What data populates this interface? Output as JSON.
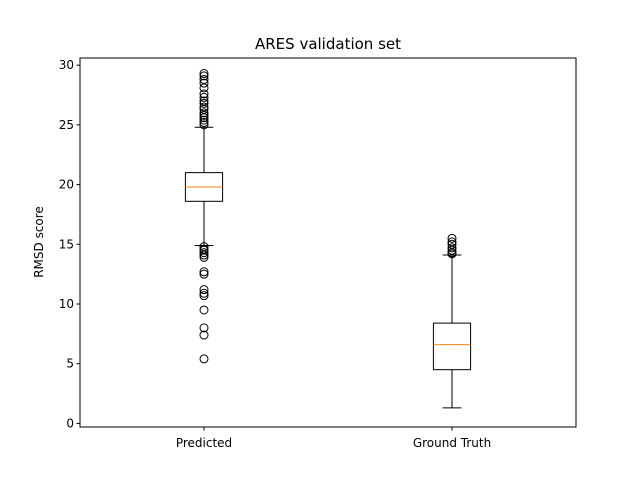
{
  "chart_data": {
    "type": "boxplot",
    "title": "ARES validation set",
    "xlabel": "",
    "ylabel": "RMSD score",
    "ylim": [
      -0.3,
      30.6
    ],
    "yticks": [
      0,
      5,
      10,
      15,
      20,
      25,
      30
    ],
    "grid": false,
    "categories": [
      "Predicted",
      "Ground Truth"
    ],
    "boxes": [
      {
        "name": "Predicted",
        "whisker_low": 14.9,
        "q1": 18.6,
        "median": 19.8,
        "q3": 21.0,
        "whisker_high": 24.8,
        "outliers": [
          5.4,
          7.4,
          8.0,
          9.5,
          10.7,
          10.9,
          11.2,
          12.5,
          12.7,
          13.9,
          14.1,
          14.3,
          14.5,
          14.6,
          14.8,
          25.0,
          25.2,
          25.4,
          25.6,
          25.8,
          26.0,
          26.3,
          26.5,
          26.8,
          27.0,
          27.3,
          27.6,
          28.1,
          28.5,
          28.8,
          29.1,
          29.3
        ]
      },
      {
        "name": "Ground Truth",
        "whisker_low": 1.3,
        "q1": 4.5,
        "median": 6.6,
        "q3": 8.4,
        "whisker_high": 14.1,
        "outliers": [
          14.2,
          14.3,
          14.5,
          14.7,
          15.0,
          15.2,
          15.5
        ]
      }
    ],
    "colors": {
      "box": "#000000",
      "median": "#ff7f0e",
      "background": "#ffffff"
    }
  }
}
